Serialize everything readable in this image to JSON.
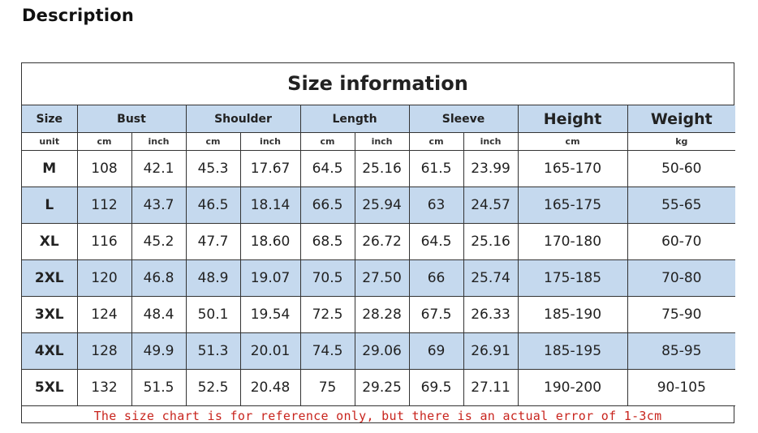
{
  "page": {
    "heading": "Description"
  },
  "table": {
    "title": "Size information",
    "headers": {
      "size": "Size",
      "bust": "Bust",
      "shoulder": "Shoulder",
      "length": "Length",
      "sleeve": "Sleeve",
      "height": "Height",
      "weight": "Weight"
    },
    "units": [
      "unit",
      "cm",
      "inch",
      "cm",
      "inch",
      "cm",
      "inch",
      "cm",
      "inch",
      "cm",
      "kg"
    ],
    "rows": [
      {
        "size": "M",
        "bust_cm": "108",
        "bust_in": "42.1",
        "shoulder_cm": "45.3",
        "shoulder_in": "17.67",
        "length_cm": "64.5",
        "length_in": "25.16",
        "sleeve_cm": "61.5",
        "sleeve_in": "23.99",
        "height": "165-170",
        "weight": "50-60"
      },
      {
        "size": "L",
        "bust_cm": "112",
        "bust_in": "43.7",
        "shoulder_cm": "46.5",
        "shoulder_in": "18.14",
        "length_cm": "66.5",
        "length_in": "25.94",
        "sleeve_cm": "63",
        "sleeve_in": "24.57",
        "height": "165-175",
        "weight": "55-65"
      },
      {
        "size": "XL",
        "bust_cm": "116",
        "bust_in": "45.2",
        "shoulder_cm": "47.7",
        "shoulder_in": "18.60",
        "length_cm": "68.5",
        "length_in": "26.72",
        "sleeve_cm": "64.5",
        "sleeve_in": "25.16",
        "height": "170-180",
        "weight": "60-70"
      },
      {
        "size": "2XL",
        "bust_cm": "120",
        "bust_in": "46.8",
        "shoulder_cm": "48.9",
        "shoulder_in": "19.07",
        "length_cm": "70.5",
        "length_in": "27.50",
        "sleeve_cm": "66",
        "sleeve_in": "25.74",
        "height": "175-185",
        "weight": "70-80"
      },
      {
        "size": "3XL",
        "bust_cm": "124",
        "bust_in": "48.4",
        "shoulder_cm": "50.1",
        "shoulder_in": "19.54",
        "length_cm": "72.5",
        "length_in": "28.28",
        "sleeve_cm": "67.5",
        "sleeve_in": "26.33",
        "height": "185-190",
        "weight": "75-90"
      },
      {
        "size": "4XL",
        "bust_cm": "128",
        "bust_in": "49.9",
        "shoulder_cm": "51.3",
        "shoulder_in": "20.01",
        "length_cm": "74.5",
        "length_in": "29.06",
        "sleeve_cm": "69",
        "sleeve_in": "26.91",
        "height": "185-195",
        "weight": "85-95"
      },
      {
        "size": "5XL",
        "bust_cm": "132",
        "bust_in": "51.5",
        "shoulder_cm": "52.5",
        "shoulder_in": "20.48",
        "length_cm": "75",
        "length_in": "29.25",
        "sleeve_cm": "69.5",
        "sleeve_in": "27.11",
        "height": "190-200",
        "weight": "90-105"
      }
    ],
    "note": "The size chart is for reference only, but there is an actual error of 1-3cm"
  },
  "colors": {
    "header_fill": "#c5d9ee",
    "note_text": "#c8241d",
    "border": "#333333"
  }
}
